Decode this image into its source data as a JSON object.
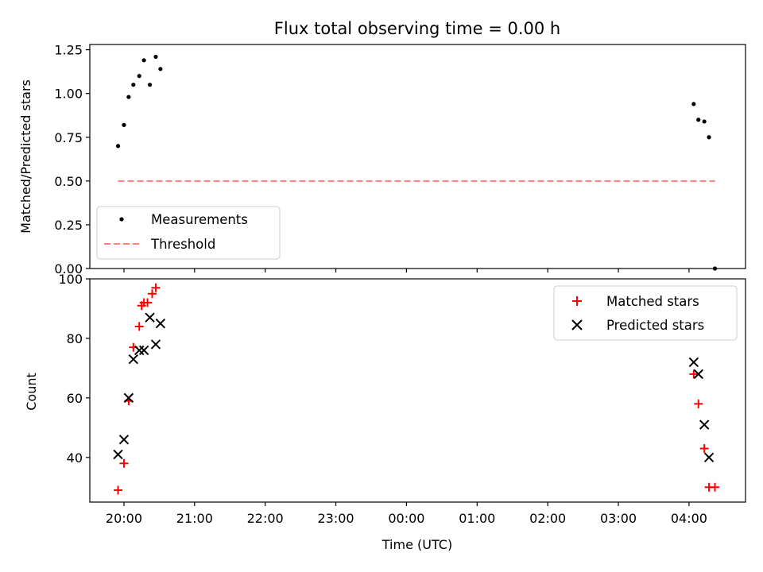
{
  "title": "Flux total observing time = 0.00 h",
  "colors": {
    "measurements": "#000000",
    "threshold": "#ff7f7f",
    "matched": "#ff0000",
    "predicted": "#000000"
  },
  "chart_data": [
    {
      "type": "scatter",
      "ylabel": "Matched/Predicted stars",
      "xlim": [
        "19:31",
        "04:48"
      ],
      "ylim": [
        0,
        1.28
      ],
      "xticks": [
        "20:00",
        "21:00",
        "22:00",
        "23:00",
        "00:00",
        "01:00",
        "02:00",
        "03:00",
        "04:00"
      ],
      "yticks": [
        "0.00",
        "0.25",
        "0.50",
        "0.75",
        "1.00",
        "1.25"
      ],
      "legend_position": "lower-left",
      "series": [
        {
          "name": "Measurements",
          "marker": "dot",
          "x": [
            "19:55",
            "20:00",
            "20:04",
            "20:08",
            "20:13",
            "20:17",
            "20:22",
            "20:27",
            "20:31",
            "04:04",
            "04:08",
            "04:13",
            "04:17",
            "04:22"
          ],
          "y": [
            0.7,
            0.82,
            0.98,
            1.05,
            1.1,
            1.19,
            1.05,
            1.21,
            1.14,
            0.94,
            0.85,
            0.84,
            0.75,
            0.0
          ]
        },
        {
          "name": "Threshold",
          "style": "dashed",
          "x": [
            "19:55",
            "04:22"
          ],
          "y": [
            0.5,
            0.5
          ]
        }
      ]
    },
    {
      "type": "scatter",
      "xlabel": "Time (UTC)",
      "ylabel": "Count",
      "xlim": [
        "19:31",
        "04:48"
      ],
      "ylim": [
        25,
        100
      ],
      "xticks": [
        "20:00",
        "21:00",
        "22:00",
        "23:00",
        "00:00",
        "01:00",
        "02:00",
        "03:00",
        "04:00"
      ],
      "yticks": [
        "40",
        "60",
        "80",
        "100"
      ],
      "legend_position": "upper-right",
      "series": [
        {
          "name": "Matched stars",
          "marker": "plus",
          "x": [
            "19:55",
            "20:00",
            "20:04",
            "20:08",
            "20:13",
            "20:15",
            "20:17",
            "20:20",
            "20:24",
            "20:27",
            "04:04",
            "04:08",
            "04:13",
            "04:17",
            "04:22"
          ],
          "y": [
            29,
            38,
            59,
            77,
            84,
            91,
            92,
            92,
            95,
            97,
            68,
            58,
            43,
            30,
            30
          ]
        },
        {
          "name": "Predicted stars",
          "marker": "x",
          "x": [
            "19:55",
            "20:00",
            "20:04",
            "20:08",
            "20:13",
            "20:17",
            "20:22",
            "20:27",
            "20:31",
            "04:04",
            "04:08",
            "04:13",
            "04:17"
          ],
          "y": [
            41,
            46,
            60,
            73,
            76,
            76,
            87,
            78,
            85,
            72,
            68,
            51,
            40
          ]
        }
      ]
    }
  ]
}
